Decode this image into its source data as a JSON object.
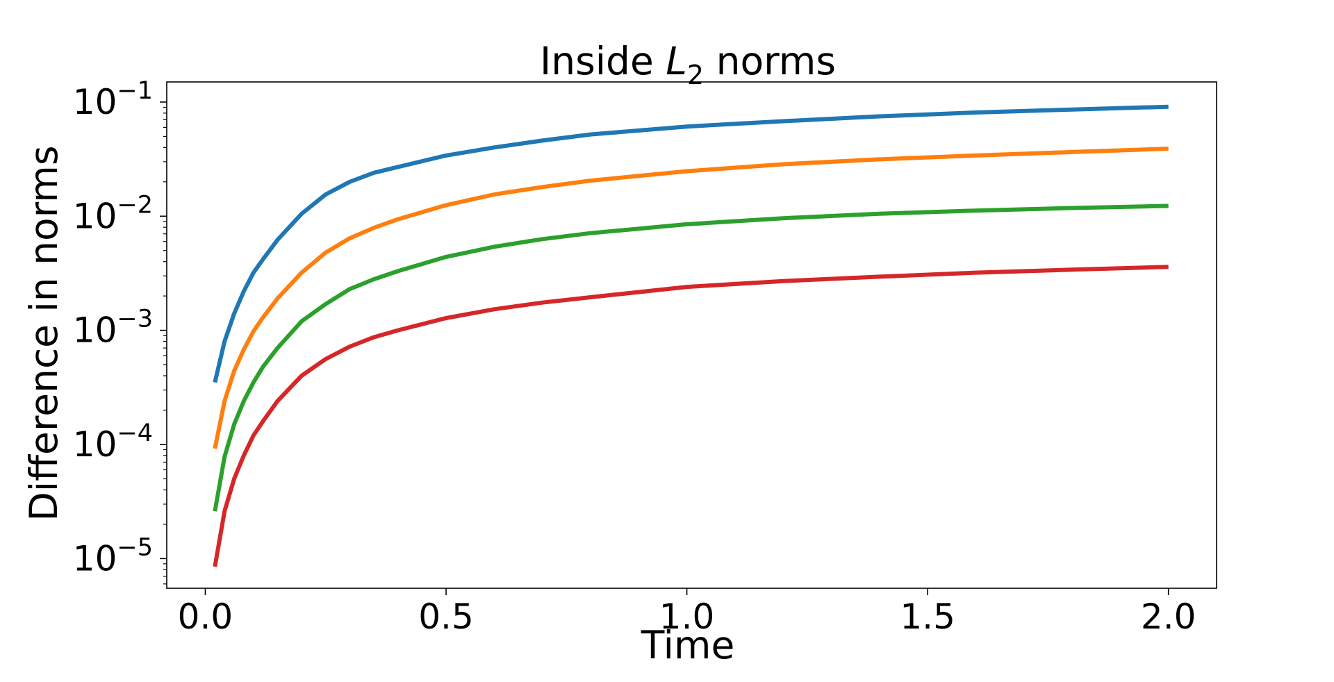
{
  "chart_data": {
    "type": "line",
    "title": {
      "prefix": "Inside ",
      "symbol": "L",
      "subscript": "2",
      "suffix": " norms"
    },
    "xlabel": "Time",
    "ylabel": "Difference in norms",
    "xlim": [
      -0.08,
      2.1
    ],
    "ylim": [
      5.5e-06,
      0.15
    ],
    "yscale": "log",
    "grid": false,
    "xticks": [
      {
        "value": 0.0,
        "label": "0.0"
      },
      {
        "value": 0.5,
        "label": "0.5"
      },
      {
        "value": 1.0,
        "label": "1.0"
      },
      {
        "value": 1.5,
        "label": "1.5"
      },
      {
        "value": 2.0,
        "label": "2.0"
      }
    ],
    "yticks": [
      {
        "value": 0.1,
        "base": "10",
        "exp": "−1"
      },
      {
        "value": 0.01,
        "base": "10",
        "exp": "−2"
      },
      {
        "value": 0.001,
        "base": "10",
        "exp": "−3"
      },
      {
        "value": 0.0001,
        "base": "10",
        "exp": "−4"
      },
      {
        "value": 1e-05,
        "base": "10",
        "exp": "−5"
      }
    ],
    "series": [
      {
        "color": "#1f77b4",
        "x": [
          0.02,
          0.04,
          0.06,
          0.08,
          0.1,
          0.12,
          0.15,
          0.2,
          0.25,
          0.3,
          0.35,
          0.4,
          0.5,
          0.6,
          0.7,
          0.8,
          1.0,
          1.2,
          1.4,
          1.6,
          1.8,
          2.0
        ],
        "y": [
          0.00035,
          0.0008,
          0.0014,
          0.0022,
          0.0032,
          0.0042,
          0.0062,
          0.0105,
          0.0155,
          0.02,
          0.024,
          0.027,
          0.034,
          0.04,
          0.046,
          0.052,
          0.061,
          0.068,
          0.075,
          0.081,
          0.086,
          0.091
        ]
      },
      {
        "color": "#ff7f0e",
        "x": [
          0.02,
          0.04,
          0.06,
          0.08,
          0.1,
          0.12,
          0.15,
          0.2,
          0.25,
          0.3,
          0.35,
          0.4,
          0.5,
          0.6,
          0.7,
          0.8,
          1.0,
          1.2,
          1.4,
          1.6,
          1.8,
          2.0
        ],
        "y": [
          9.2e-05,
          0.00024,
          0.00044,
          0.00068,
          0.00098,
          0.0013,
          0.0019,
          0.0032,
          0.0048,
          0.0064,
          0.0079,
          0.0094,
          0.0125,
          0.0155,
          0.018,
          0.0205,
          0.0248,
          0.0285,
          0.0315,
          0.034,
          0.0365,
          0.039
        ]
      },
      {
        "color": "#2ca02c",
        "x": [
          0.02,
          0.04,
          0.06,
          0.08,
          0.1,
          0.12,
          0.15,
          0.2,
          0.25,
          0.3,
          0.35,
          0.4,
          0.5,
          0.6,
          0.7,
          0.8,
          1.0,
          1.2,
          1.4,
          1.6,
          1.8,
          2.0
        ],
        "y": [
          2.6e-05,
          7.8e-05,
          0.00015,
          0.00024,
          0.00035,
          0.00048,
          0.0007,
          0.0012,
          0.0017,
          0.0023,
          0.0028,
          0.0033,
          0.0044,
          0.0054,
          0.0063,
          0.0071,
          0.0085,
          0.0096,
          0.0105,
          0.0112,
          0.0118,
          0.0123
        ]
      },
      {
        "color": "#d62728",
        "x": [
          0.02,
          0.04,
          0.06,
          0.08,
          0.1,
          0.12,
          0.15,
          0.2,
          0.25,
          0.3,
          0.35,
          0.4,
          0.5,
          0.6,
          0.7,
          0.8,
          1.0,
          1.2,
          1.4,
          1.6,
          1.8,
          2.0
        ],
        "y": [
          8.5e-06,
          2.6e-05,
          5e-05,
          8e-05,
          0.00012,
          0.00016,
          0.00024,
          0.0004,
          0.00056,
          0.00072,
          0.00087,
          0.001,
          0.00128,
          0.00153,
          0.00175,
          0.00195,
          0.0024,
          0.0027,
          0.00295,
          0.0032,
          0.0034,
          0.0036
        ]
      }
    ]
  }
}
